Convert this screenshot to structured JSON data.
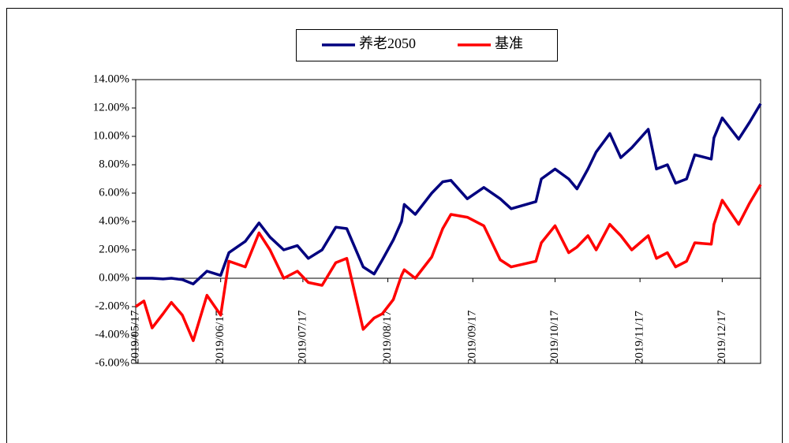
{
  "chart_data": {
    "type": "line",
    "x": [
      "2019/05/17",
      "2019/05/20",
      "2019/05/23",
      "2019/05/27",
      "2019/05/30",
      "2019/06/03",
      "2019/06/07",
      "2019/06/12",
      "2019/06/17",
      "2019/06/20",
      "2019/06/26",
      "2019/07/01",
      "2019/07/05",
      "2019/07/10",
      "2019/07/15",
      "2019/07/19",
      "2019/07/24",
      "2019/07/29",
      "2019/08/02",
      "2019/08/08",
      "2019/08/12",
      "2019/08/15",
      "2019/08/19",
      "2019/08/22",
      "2019/08/23",
      "2019/08/27",
      "2019/09/02",
      "2019/09/06",
      "2019/09/09",
      "2019/09/15",
      "2019/09/21",
      "2019/09/27",
      "2019/10/01",
      "2019/10/10",
      "2019/10/12",
      "2019/10/17",
      "2019/10/22",
      "2019/10/25",
      "2019/10/29",
      "2019/11/01",
      "2019/11/06",
      "2019/11/10",
      "2019/11/14",
      "2019/11/20",
      "2019/11/23",
      "2019/11/27",
      "2019/11/30",
      "2019/12/04",
      "2019/12/07",
      "2019/12/13",
      "2019/12/14",
      "2019/12/17",
      "2019/12/23",
      "2019/12/27",
      "2019/12/31"
    ],
    "series": [
      {
        "name": "养老2050",
        "color": "#00007f",
        "values": [
          0,
          0,
          0,
          -0.05,
          0,
          -0.1,
          -0.4,
          0.5,
          0.2,
          1.8,
          2.6,
          3.9,
          2.9,
          2.0,
          2.3,
          1.4,
          2.0,
          3.6,
          3.5,
          0.8,
          0.3,
          1.3,
          2.7,
          4.0,
          5.2,
          4.5,
          6.0,
          6.8,
          6.9,
          5.6,
          6.4,
          5.6,
          4.9,
          5.4,
          7.0,
          7.7,
          7.0,
          6.3,
          7.7,
          8.9,
          10.2,
          8.5,
          9.2,
          10.5,
          7.7,
          8.0,
          6.7,
          7.0,
          8.7,
          8.4,
          9.9,
          11.3,
          9.8,
          11.0,
          12.3
        ]
      },
      {
        "name": "基准",
        "color": "#ff0000",
        "values": [
          -2.0,
          -1.6,
          -3.5,
          -2.5,
          -1.7,
          -2.6,
          -4.4,
          -1.2,
          -2.6,
          1.2,
          0.8,
          3.2,
          2.0,
          0.0,
          0.5,
          -0.3,
          -0.5,
          1.1,
          1.4,
          -3.6,
          -2.8,
          -2.5,
          -1.5,
          0.2,
          0.6,
          0.0,
          1.5,
          3.5,
          4.5,
          4.3,
          3.7,
          1.3,
          0.8,
          1.2,
          2.5,
          3.7,
          1.8,
          2.2,
          3.0,
          2.0,
          3.8,
          3.0,
          2.0,
          3.0,
          1.4,
          1.8,
          0.8,
          1.2,
          2.5,
          2.4,
          3.8,
          5.5,
          3.8,
          5.3,
          6.6
        ]
      }
    ],
    "xlim": [
      "2019/05/17",
      "2019/12/31"
    ],
    "xticks": [
      "2019/05/17",
      "2019/06/17",
      "2019/07/17",
      "2019/08/17",
      "2019/09/17",
      "2019/10/17",
      "2019/11/17",
      "2019/12/17"
    ],
    "ylim": [
      -6,
      14
    ],
    "yticks": [
      {
        "value": -6,
        "label": "-6.00%"
      },
      {
        "value": -4,
        "label": "-4.00%"
      },
      {
        "value": -2,
        "label": "-2.00%"
      },
      {
        "value": 0,
        "label": "0.00%"
      },
      {
        "value": 2,
        "label": "2.00%"
      },
      {
        "value": 4,
        "label": "4.00%"
      },
      {
        "value": 6,
        "label": "6.00%"
      },
      {
        "value": 8,
        "label": "8.00%"
      },
      {
        "value": 10,
        "label": "10.00%"
      },
      {
        "value": 12,
        "label": "12.00%"
      },
      {
        "value": 14,
        "label": "14.00%"
      }
    ],
    "grid": false,
    "legend": "top"
  }
}
